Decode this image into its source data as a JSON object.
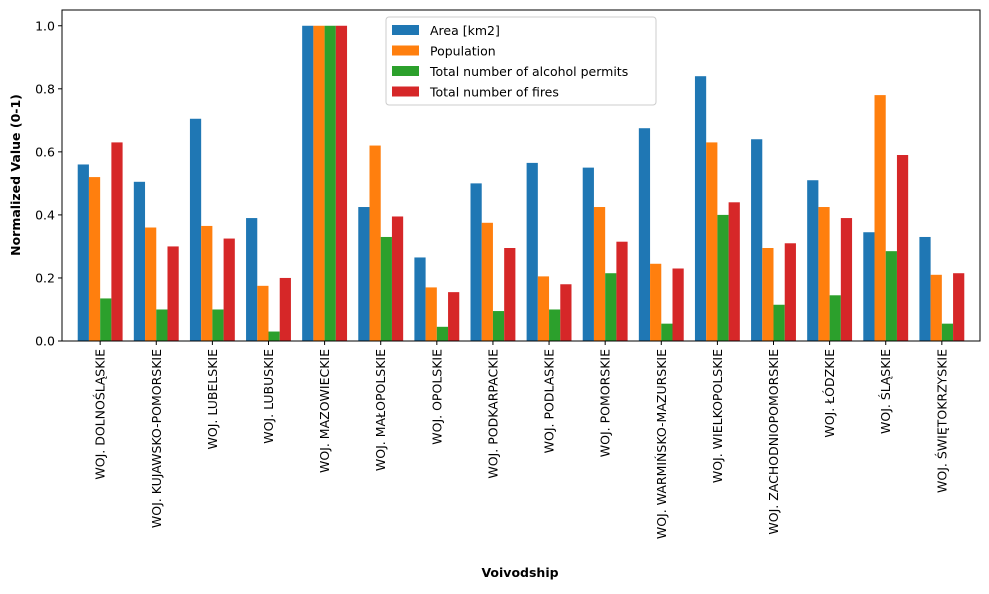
{
  "chart_data": {
    "type": "bar",
    "xlabel": "Voivodship",
    "ylabel": "Normalized Value (0-1)",
    "ylim": [
      0,
      1.05
    ],
    "yticks": [
      "0.0",
      "0.2",
      "0.4",
      "0.6",
      "0.8",
      "1.0"
    ],
    "grid": false,
    "legend_position": "top-center",
    "categories": [
      "WOJ. DOLNOŚLĄSKIE",
      "WOJ. KUJAWSKO-POMORSKIE",
      "WOJ. LUBELSKIE",
      "WOJ. LUBUSKIE",
      "WOJ. MAZOWIECKIE",
      "WOJ. MAŁOPOLSKIE",
      "WOJ. OPOLSKIE",
      "WOJ. PODKARPACKIE",
      "WOJ. PODLASKIE",
      "WOJ. POMORSKIE",
      "WOJ. WARMIŃSKO-MAZURSKIE",
      "WOJ. WIELKOPOLSKIE",
      "WOJ. ZACHODNIOPOMORSKIE",
      "WOJ. ŁÓDZKIE",
      "WOJ. ŚLĄSKIE",
      "WOJ. ŚWIĘTOKRZYSKIE"
    ],
    "series": [
      {
        "name": "Area [km2]",
        "color": "#1f77b4",
        "values": [
          0.56,
          0.505,
          0.705,
          0.39,
          1.0,
          0.425,
          0.265,
          0.5,
          0.565,
          0.55,
          0.675,
          0.84,
          0.64,
          0.51,
          0.345,
          0.33
        ]
      },
      {
        "name": "Population",
        "color": "#ff7f0e",
        "values": [
          0.52,
          0.36,
          0.365,
          0.175,
          1.0,
          0.62,
          0.17,
          0.375,
          0.205,
          0.425,
          0.245,
          0.63,
          0.295,
          0.425,
          0.78,
          0.21
        ]
      },
      {
        "name": "Total number of alcohol permits",
        "color": "#2ca02c",
        "values": [
          0.135,
          0.1,
          0.1,
          0.03,
          1.0,
          0.33,
          0.045,
          0.095,
          0.1,
          0.215,
          0.055,
          0.4,
          0.115,
          0.145,
          0.285,
          0.055
        ]
      },
      {
        "name": "Total number of fires",
        "color": "#d62728",
        "values": [
          0.63,
          0.3,
          0.325,
          0.2,
          1.0,
          0.395,
          0.155,
          0.295,
          0.18,
          0.315,
          0.23,
          0.44,
          0.31,
          0.39,
          0.59,
          0.215
        ]
      }
    ]
  }
}
